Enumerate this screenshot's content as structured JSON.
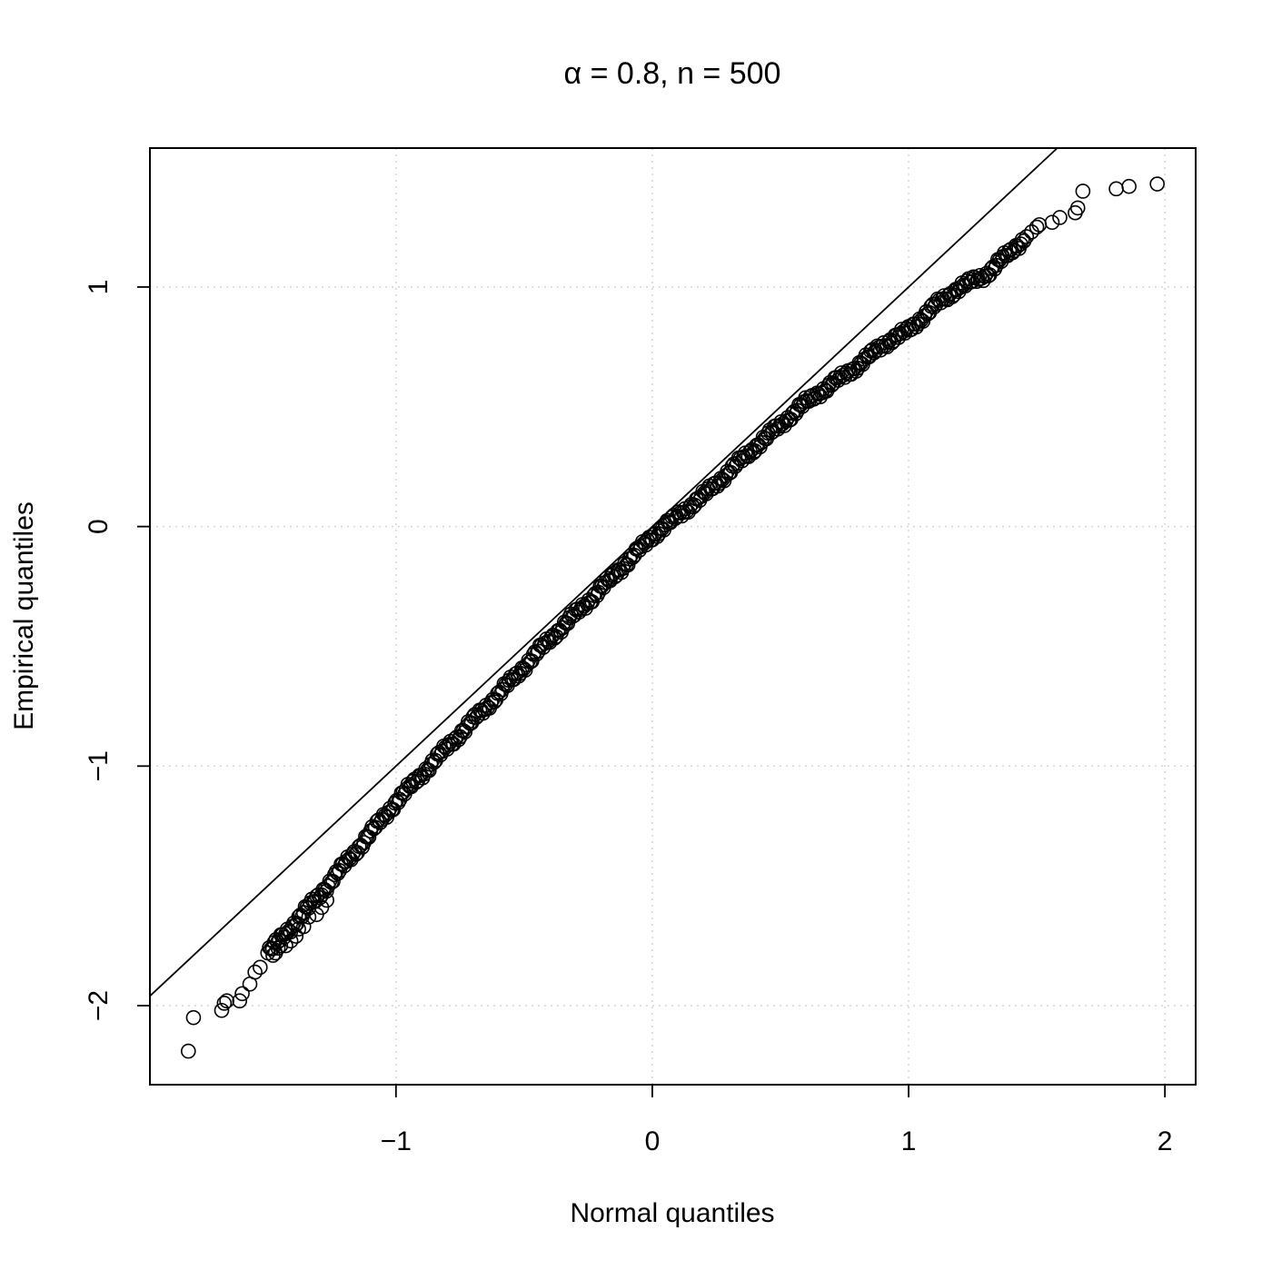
{
  "chart_data": {
    "type": "scatter",
    "title": "α = 0.8, n = 500",
    "xlabel": "Normal quantiles",
    "ylabel": "Empirical quantiles",
    "xlim": [
      -1.96,
      2.12
    ],
    "ylim": [
      -2.33,
      1.58
    ],
    "x_ticks": [
      -1,
      0,
      1,
      2
    ],
    "x_tick_labels": [
      "−1",
      "0",
      "1",
      "2"
    ],
    "y_ticks": [
      -2,
      -1,
      0,
      1
    ],
    "y_tick_labels": [
      "−2",
      "−1",
      "0",
      "1"
    ],
    "grid": true,
    "grid_style": "dotted",
    "n": 500,
    "reference_line": {
      "intercept": 0,
      "slope": 1
    },
    "quantile_curve": {
      "x": [
        -1.5,
        -1.4,
        -1.3,
        -1.2,
        -1.0,
        -0.8,
        -0.6,
        -0.4,
        -0.2,
        0.0,
        0.2,
        0.4,
        0.6,
        0.8,
        0.9,
        1.0,
        1.1,
        1.2,
        1.3,
        1.4,
        1.45
      ],
      "y": [
        -1.78,
        -1.66,
        -1.54,
        -1.41,
        -1.15,
        -0.92,
        -0.7,
        -0.47,
        -0.26,
        -0.04,
        0.13,
        0.33,
        0.52,
        0.67,
        0.76,
        0.82,
        0.92,
        1.0,
        1.05,
        1.15,
        1.2
      ]
    },
    "tail_points": [
      {
        "x": -1.81,
        "y": -2.19
      },
      {
        "x": -1.79,
        "y": -2.05
      },
      {
        "x": -1.68,
        "y": -2.02
      },
      {
        "x": -1.67,
        "y": -1.99
      },
      {
        "x": -1.66,
        "y": -1.98
      },
      {
        "x": -1.61,
        "y": -1.98
      },
      {
        "x": -1.6,
        "y": -1.95
      },
      {
        "x": -1.57,
        "y": -1.91
      },
      {
        "x": -1.55,
        "y": -1.86
      },
      {
        "x": -1.53,
        "y": -1.84
      },
      {
        "x": -1.48,
        "y": -1.79
      },
      {
        "x": -1.47,
        "y": -1.78
      },
      {
        "x": -1.46,
        "y": -1.76
      },
      {
        "x": -1.45,
        "y": -1.75
      },
      {
        "x": -1.43,
        "y": -1.75
      },
      {
        "x": -1.41,
        "y": -1.73
      },
      {
        "x": -1.39,
        "y": -1.71
      },
      {
        "x": -1.38,
        "y": -1.68
      },
      {
        "x": -1.36,
        "y": -1.67
      },
      {
        "x": -1.34,
        "y": -1.63
      },
      {
        "x": -1.31,
        "y": -1.62
      },
      {
        "x": -1.29,
        "y": -1.59
      },
      {
        "x": -1.27,
        "y": -1.56
      },
      {
        "x": 1.46,
        "y": 1.21
      },
      {
        "x": 1.48,
        "y": 1.23
      },
      {
        "x": 1.5,
        "y": 1.25
      },
      {
        "x": 1.51,
        "y": 1.26
      },
      {
        "x": 1.56,
        "y": 1.27
      },
      {
        "x": 1.59,
        "y": 1.29
      },
      {
        "x": 1.65,
        "y": 1.31
      },
      {
        "x": 1.66,
        "y": 1.33
      },
      {
        "x": 1.68,
        "y": 1.4
      },
      {
        "x": 1.81,
        "y": 1.41
      },
      {
        "x": 1.86,
        "y": 1.42
      },
      {
        "x": 1.97,
        "y": 1.43
      }
    ]
  }
}
